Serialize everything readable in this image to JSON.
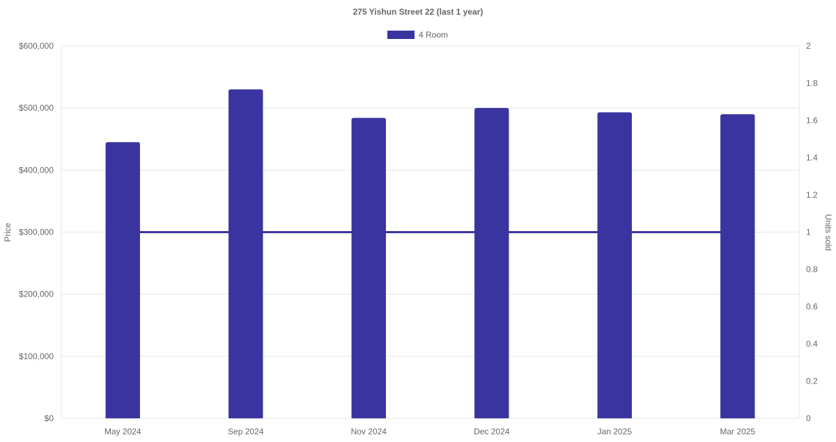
{
  "chart_data": {
    "type": "bar",
    "title": "275 Yishun Street 22 (last 1 year)",
    "categories": [
      "May 2024",
      "Sep 2024",
      "Nov 2024",
      "Dec 2024",
      "Jan 2025",
      "Mar 2025"
    ],
    "series": [
      {
        "name": "4 Room",
        "type": "bar",
        "axis": "left",
        "color": "#3a34a0",
        "values": [
          445000,
          530000,
          484000,
          500000,
          493000,
          490000
        ]
      },
      {
        "type": "line",
        "axis": "right",
        "color": "#3a34a0",
        "values": [
          1,
          1,
          1,
          1,
          1,
          1
        ]
      }
    ],
    "y_left": {
      "label": "Price",
      "range": [
        0,
        600000
      ],
      "ticks": [
        0,
        100000,
        200000,
        300000,
        400000,
        500000,
        600000
      ],
      "tick_labels": [
        "$0",
        "$100,000",
        "$200,000",
        "$300,000",
        "$400,000",
        "$500,000",
        "$600,000"
      ]
    },
    "y_right": {
      "label": "Units sold",
      "range": [
        0,
        2
      ],
      "ticks": [
        0,
        0.2,
        0.4,
        0.6,
        0.8,
        1,
        1.2,
        1.4,
        1.6,
        1.8,
        2
      ],
      "tick_labels": [
        "0",
        "0.2",
        "0.4",
        "0.6",
        "0.8",
        "1",
        "1.2",
        "1.4",
        "1.6",
        "1.8",
        "2"
      ]
    },
    "grid": true,
    "legend_position": "top-center"
  }
}
